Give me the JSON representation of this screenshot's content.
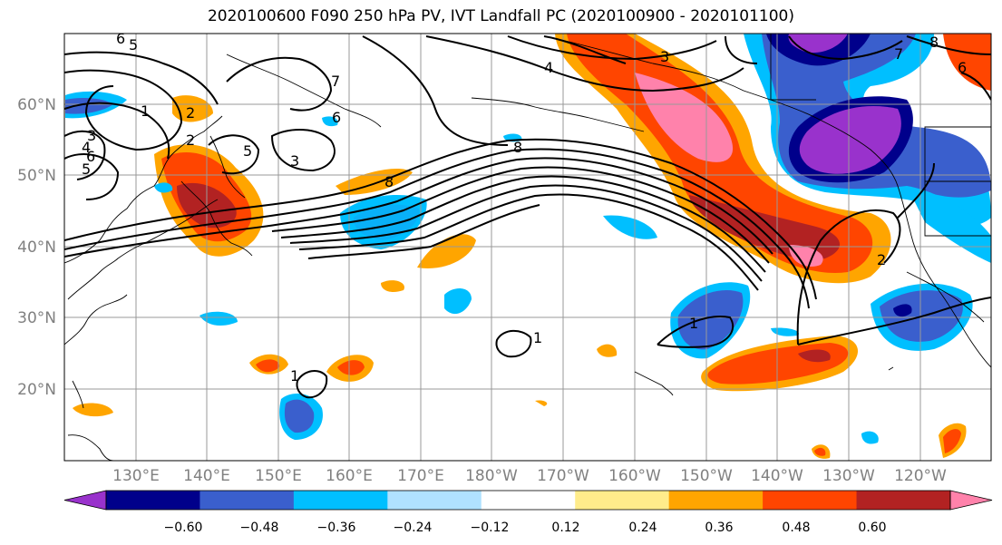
{
  "title": "2020100600 F090 250 hPa PV, IVT Landfall PC (2020100900 - 2020101100)",
  "map": {
    "lat_range": [
      10,
      70
    ],
    "lon_range_east": [
      120,
      250
    ],
    "lat_ticks": [
      "60°N",
      "50°N",
      "40°N",
      "30°N",
      "20°N"
    ],
    "lon_ticks": [
      "130°E",
      "140°E",
      "150°E",
      "160°E",
      "170°E",
      "180°W",
      "170°W",
      "160°W",
      "150°W",
      "140°W",
      "130°W",
      "120°W"
    ],
    "gridlines": true,
    "pv_contour_labels": [
      "6",
      "5",
      "7",
      "6",
      "1",
      "2",
      "3",
      "4",
      "5",
      "6",
      "5",
      "3",
      "8",
      "8",
      "2",
      "4",
      "3",
      "7",
      "8",
      "6",
      "2",
      "1",
      "1",
      "1"
    ]
  },
  "colorbar": {
    "tick_labels": [
      "−0.60",
      "−0.48",
      "−0.36",
      "−0.24",
      "−0.12",
      "0.12",
      "0.24",
      "0.36",
      "0.48",
      "0.60"
    ],
    "colors": [
      "#9932cc",
      "#00008b",
      "#3a5fcd",
      "#00bfff",
      "#b0e2ff",
      "#ffffff",
      "#ffec8b",
      "#ffa500",
      "#ff4500",
      "#b22222",
      "#ff82ab"
    ],
    "extend": "both"
  }
}
